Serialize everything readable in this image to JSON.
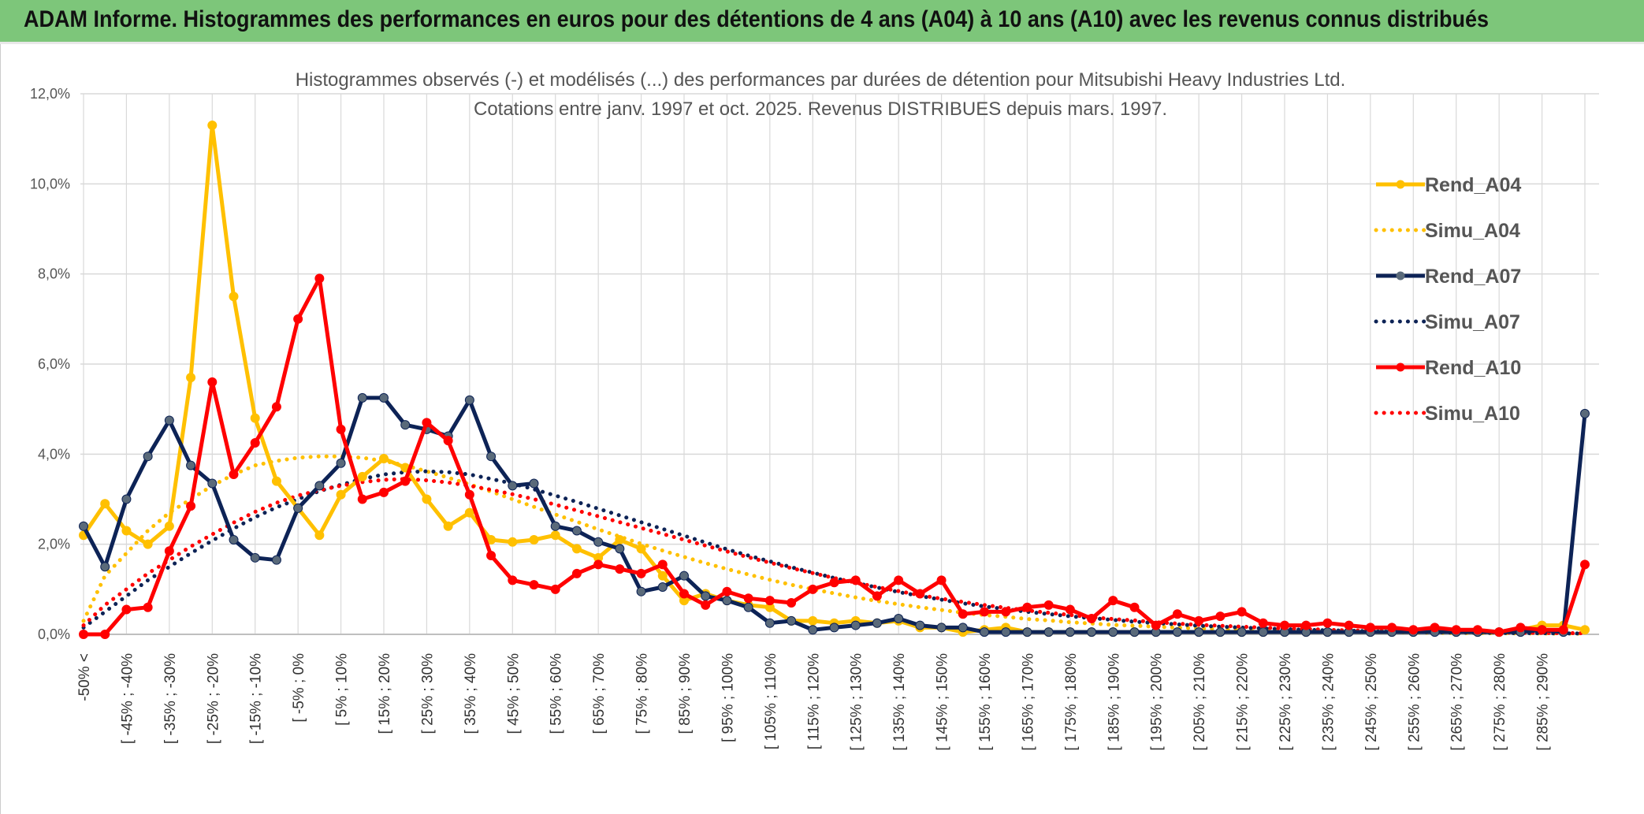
{
  "banner": {
    "title": "ADAM Informe. Histogrammes des performances en euros pour des détentions de 4 ans (A04) à 10 ans (A10) avec les revenus connus distribués"
  },
  "colors": {
    "banner_bg": "#7dc67a",
    "a04": "#ffc000",
    "a07": "#0d2356",
    "a07_marker": "#5a6a7a",
    "a10": "#ff0000",
    "grid": "#d9d9d9"
  },
  "chart_data": {
    "type": "line",
    "title_line1": "Histogrammes observés (-) et modélisés (...) des performances par durées de détention pour Mitsubishi Heavy Industries Ltd.",
    "title_line2": "Cotations entre janv. 1997 et oct. 2025. Revenus DISTRIBUES depuis mars. 1997.",
    "ylim": [
      0,
      12
    ],
    "y_ticks": [
      "0,0%",
      "2,0%",
      "4,0%",
      "6,0%",
      "8,0%",
      "10,0%",
      "12,0%"
    ],
    "grid": true,
    "legend_position": "right",
    "x_labels": [
      "-50% <",
      "[ -45% ; -40%",
      "[ -35% ; -30%",
      "[ -25% ; -20%",
      "[ -15% ; -10%",
      "[ -5% ; 0%",
      "[ 5% ; 10%",
      "[ 15% ; 20%",
      "[ 25% ; 30%",
      "[ 35% ; 40%",
      "[ 45% ; 50%",
      "[ 55% ; 60%",
      "[ 65% ; 70%",
      "[ 75% ; 80%",
      "[ 85% ; 90%",
      "[ 95% ; 100%",
      "[ 105% ; 110%",
      "[ 115% ; 120%",
      "[ 125% ; 130%",
      "[ 135% ; 140%",
      "[ 145% ; 150%",
      "[ 155% ; 160%",
      "[ 165% ; 170%",
      "[ 175% ; 180%",
      "[ 185% ; 190%",
      "[ 195% ; 200%",
      "[ 205% ; 210%",
      "[ 215% ; 220%",
      "[ 225% ; 230%",
      "[ 235% ; 240%",
      "[ 245% ; 250%",
      "[ 255% ; 260%",
      "[ 265% ; 270%",
      "[ 275% ; 280%",
      "[ 285% ; 290%"
    ],
    "series": [
      {
        "name": "Rend_A04",
        "style": "solid",
        "color": "#ffc000",
        "marker_color": "#ffc000",
        "values": [
          2.2,
          2.9,
          2.3,
          2.0,
          2.4,
          5.7,
          11.3,
          7.5,
          4.8,
          3.4,
          2.8,
          2.2,
          3.1,
          3.5,
          3.9,
          3.7,
          3.0,
          2.4,
          2.7,
          2.1,
          2.05,
          2.1,
          2.2,
          1.9,
          1.7,
          2.1,
          1.9,
          1.3,
          0.75,
          0.9,
          0.75,
          0.65,
          0.6,
          0.3,
          0.3,
          0.25,
          0.3,
          0.25,
          0.3,
          0.15,
          0.15,
          0.05,
          0.1,
          0.15,
          0.05,
          0.05,
          0.05,
          0.05,
          0.05,
          0.05,
          0.05,
          0.05,
          0.05,
          0.05,
          0.05,
          0.05,
          0.05,
          0.05,
          0.05,
          0.05,
          0.05,
          0.05,
          0.05,
          0.1,
          0.05,
          0.05,
          0.05,
          0.1,
          0.2,
          0.2,
          0.1
        ]
      },
      {
        "name": "Simu_A04",
        "style": "dotted",
        "color": "#ffc000",
        "values": [
          0.3,
          1.3,
          1.8,
          2.3,
          2.7,
          3.0,
          3.3,
          3.55,
          3.75,
          3.85,
          3.92,
          3.95,
          3.95,
          3.92,
          3.85,
          3.75,
          3.62,
          3.48,
          3.33,
          3.17,
          3.0,
          2.83,
          2.66,
          2.5,
          2.33,
          2.17,
          2.01,
          1.86,
          1.72,
          1.58,
          1.45,
          1.33,
          1.21,
          1.1,
          1.0,
          0.91,
          0.82,
          0.74,
          0.67,
          0.6,
          0.54,
          0.48,
          0.43,
          0.39,
          0.34,
          0.31,
          0.27,
          0.24,
          0.21,
          0.19,
          0.17,
          0.15,
          0.13,
          0.12,
          0.1,
          0.09,
          0.08,
          0.07,
          0.06,
          0.055,
          0.05,
          0.045,
          0.04,
          0.035,
          0.03,
          0.027,
          0.024,
          0.021,
          0.019,
          0.017,
          0.015
        ]
      },
      {
        "name": "Rend_A07",
        "style": "solid",
        "color": "#0d2356",
        "marker_color": "#5a6a7a",
        "values": [
          2.4,
          1.5,
          3.0,
          3.95,
          4.75,
          3.75,
          3.35,
          2.1,
          1.7,
          1.65,
          2.8,
          3.3,
          3.8,
          5.25,
          5.25,
          4.65,
          4.55,
          4.4,
          5.2,
          3.95,
          3.3,
          3.35,
          2.4,
          2.3,
          2.05,
          1.9,
          0.95,
          1.05,
          1.3,
          0.85,
          0.75,
          0.6,
          0.25,
          0.3,
          0.1,
          0.15,
          0.2,
          0.25,
          0.35,
          0.2,
          0.15,
          0.15,
          0.05,
          0.05,
          0.05,
          0.05,
          0.05,
          0.05,
          0.05,
          0.05,
          0.05,
          0.05,
          0.05,
          0.05,
          0.05,
          0.05,
          0.05,
          0.05,
          0.05,
          0.05,
          0.05,
          0.05,
          0.05,
          0.05,
          0.05,
          0.05,
          0.05,
          0.05,
          0.1,
          0.05,
          4.9
        ]
      },
      {
        "name": "Simu_A07",
        "style": "dotted",
        "color": "#0d2356",
        "values": [
          0.15,
          0.5,
          0.85,
          1.2,
          1.5,
          1.8,
          2.08,
          2.35,
          2.6,
          2.82,
          3.0,
          3.18,
          3.32,
          3.45,
          3.55,
          3.6,
          3.62,
          3.6,
          3.55,
          3.45,
          3.35,
          3.22,
          3.08,
          2.94,
          2.79,
          2.64,
          2.49,
          2.34,
          2.19,
          2.04,
          1.89,
          1.75,
          1.62,
          1.49,
          1.37,
          1.25,
          1.14,
          1.04,
          0.94,
          0.85,
          0.77,
          0.69,
          0.62,
          0.56,
          0.5,
          0.45,
          0.4,
          0.36,
          0.32,
          0.28,
          0.25,
          0.22,
          0.19,
          0.17,
          0.15,
          0.13,
          0.115,
          0.1,
          0.09,
          0.08,
          0.07,
          0.06,
          0.05,
          0.045,
          0.04,
          0.035,
          0.03,
          0.027,
          0.024,
          0.021,
          0.018
        ]
      },
      {
        "name": "Rend_A10",
        "style": "solid",
        "color": "#ff0000",
        "marker_color": "#ff0000",
        "values": [
          0.0,
          0.0,
          0.55,
          0.6,
          1.85,
          2.85,
          5.6,
          3.55,
          4.25,
          5.05,
          7.0,
          7.9,
          4.55,
          3.0,
          3.15,
          3.4,
          4.7,
          4.3,
          3.1,
          1.75,
          1.2,
          1.1,
          1.0,
          1.35,
          1.55,
          1.45,
          1.35,
          1.55,
          0.9,
          0.65,
          0.95,
          0.8,
          0.75,
          0.7,
          1.0,
          1.15,
          1.2,
          0.85,
          1.2,
          0.9,
          1.2,
          0.45,
          0.5,
          0.5,
          0.6,
          0.65,
          0.55,
          0.35,
          0.75,
          0.6,
          0.2,
          0.45,
          0.3,
          0.4,
          0.5,
          0.25,
          0.2,
          0.2,
          0.25,
          0.2,
          0.15,
          0.15,
          0.1,
          0.15,
          0.1,
          0.1,
          0.05,
          0.15,
          0.1,
          0.1,
          1.55
        ]
      },
      {
        "name": "Simu_A10",
        "style": "dotted",
        "color": "#ff0000",
        "values": [
          0.2,
          0.65,
          1.0,
          1.35,
          1.65,
          1.95,
          2.22,
          2.48,
          2.72,
          2.92,
          3.08,
          3.2,
          3.3,
          3.38,
          3.43,
          3.45,
          3.42,
          3.37,
          3.3,
          3.21,
          3.11,
          3.0,
          2.88,
          2.75,
          2.62,
          2.49,
          2.36,
          2.23,
          2.1,
          1.97,
          1.84,
          1.71,
          1.59,
          1.47,
          1.36,
          1.25,
          1.15,
          1.05,
          0.96,
          0.87,
          0.79,
          0.72,
          0.65,
          0.59,
          0.53,
          0.48,
          0.43,
          0.38,
          0.34,
          0.31,
          0.27,
          0.24,
          0.21,
          0.19,
          0.17,
          0.15,
          0.13,
          0.12,
          0.1,
          0.09,
          0.08,
          0.07,
          0.06,
          0.055,
          0.05,
          0.045,
          0.04,
          0.035,
          0.03,
          0.027,
          0.024
        ]
      }
    ]
  }
}
